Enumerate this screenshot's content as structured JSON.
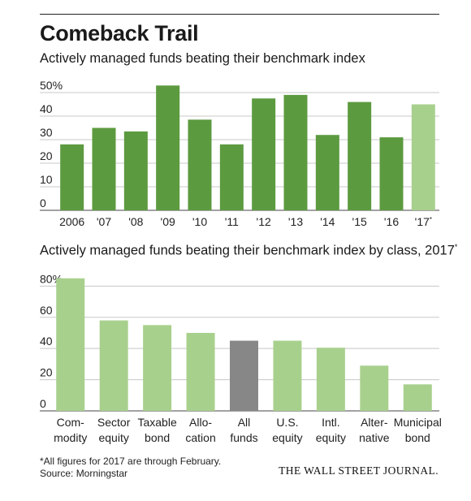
{
  "title": "Comeback Trail",
  "brand": "THE WALL STREET JOURNAL.",
  "footnote": "*All figures for 2017 are through February.",
  "source": "Source: Morningstar",
  "colors": {
    "dark_bar": "#5c9a3f",
    "light_bar": "#a8d08d",
    "gray_bar": "#878787",
    "grid": "#c8c8c8"
  },
  "chart_data": [
    {
      "type": "bar",
      "title": "Actively managed funds beating their benchmark index",
      "categories": [
        "2006",
        "'07",
        "'08",
        "'09",
        "'10",
        "'11",
        "'12",
        "'13",
        "'14",
        "'15",
        "'16",
        "'17*"
      ],
      "values": [
        28,
        35,
        33.5,
        53,
        38.5,
        28,
        47.5,
        49,
        32,
        46,
        31,
        45
      ],
      "highlight": [
        "dark",
        "dark",
        "dark",
        "dark",
        "dark",
        "dark",
        "dark",
        "dark",
        "dark",
        "dark",
        "dark",
        "light"
      ],
      "yticks": [
        "0",
        "10",
        "20",
        "30",
        "40",
        "50%"
      ],
      "ylim": [
        0,
        55
      ],
      "grid": true
    },
    {
      "type": "bar",
      "title": "Actively managed funds beating their benchmark index by class, 2017*",
      "categories": [
        [
          "Com-",
          "modity"
        ],
        [
          "Sector",
          "equity"
        ],
        [
          "Taxable",
          "bond"
        ],
        [
          "Allo-",
          "cation"
        ],
        [
          "All",
          "funds"
        ],
        [
          "U.S.",
          "equity"
        ],
        [
          "Intl.",
          "equity"
        ],
        [
          "Alter-",
          "native"
        ],
        [
          "Municipal",
          "bond"
        ]
      ],
      "values": [
        85,
        58,
        55,
        50,
        45,
        45,
        40.5,
        29,
        17
      ],
      "highlight": [
        "light",
        "light",
        "light",
        "light",
        "gray",
        "light",
        "light",
        "light",
        "light"
      ],
      "yticks": [
        "0",
        "20",
        "40",
        "60",
        "80%"
      ],
      "ylim": [
        0,
        88
      ],
      "grid": true
    }
  ]
}
